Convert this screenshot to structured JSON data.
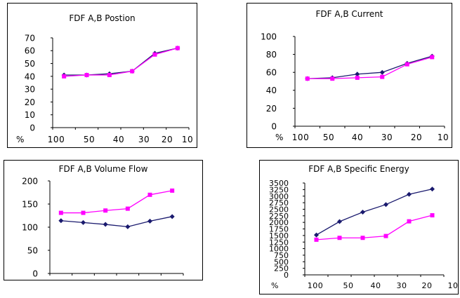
{
  "chart_data": [
    {
      "type": "line",
      "title": "FDF A,B Postion",
      "x_prefix": "%",
      "categories": [
        "100",
        "50",
        "40",
        "30",
        "20",
        "10"
      ],
      "yticks": [
        0,
        10,
        20,
        30,
        40,
        50,
        60,
        70
      ],
      "ylim": [
        0,
        70
      ],
      "grid": false,
      "series": [
        {
          "color": "#1a1a6e",
          "marker": "diamond",
          "values": [
            41,
            41,
            42,
            44,
            58,
            62
          ]
        },
        {
          "color": "#ff00ff",
          "marker": "square",
          "values": [
            40,
            41,
            41,
            44,
            57,
            62
          ]
        }
      ]
    },
    {
      "type": "line",
      "title": "FDF A,B Current",
      "x_prefix": "%",
      "categories": [
        "100",
        "50",
        "40",
        "30",
        "20",
        "10"
      ],
      "yticks": [
        0,
        20,
        40,
        60,
        80,
        100
      ],
      "ylim": [
        0,
        100
      ],
      "grid": false,
      "series": [
        {
          "color": "#1a1a6e",
          "marker": "diamond",
          "values": [
            53,
            54,
            58,
            60,
            70,
            78
          ]
        },
        {
          "color": "#ff00ff",
          "marker": "square",
          "values": [
            53,
            53,
            54,
            55,
            69,
            77
          ]
        }
      ]
    },
    {
      "type": "line",
      "title": "FDF A,B Volume Flow",
      "x_prefix": "%",
      "categories": [
        "100",
        "50",
        "40",
        "30",
        "20",
        "10"
      ],
      "yticks": [
        0,
        50,
        100,
        150,
        200
      ],
      "ylim": [
        0,
        200
      ],
      "grid": false,
      "series": [
        {
          "color": "#1a1a6e",
          "marker": "diamond",
          "values": [
            114,
            110,
            106,
            101,
            113,
            123
          ]
        },
        {
          "color": "#ff00ff",
          "marker": "square",
          "values": [
            131,
            131,
            136,
            140,
            170,
            179
          ]
        }
      ]
    },
    {
      "type": "line",
      "title": "FDF A,B Specific Energy",
      "x_prefix": "%",
      "categories": [
        "100",
        "50",
        "40",
        "30",
        "20",
        "10"
      ],
      "yticks": [
        0,
        250,
        500,
        750,
        1000,
        1250,
        1500,
        1750,
        2000,
        2250,
        2500,
        2750,
        3000,
        3250,
        3500
      ],
      "ylim": [
        0,
        3500
      ],
      "grid": false,
      "series": [
        {
          "color": "#1a1a6e",
          "marker": "diamond",
          "values": [
            1520,
            2030,
            2390,
            2680,
            3070,
            3270
          ]
        },
        {
          "color": "#ff00ff",
          "marker": "square",
          "values": [
            1340,
            1410,
            1410,
            1480,
            2040,
            2270
          ]
        }
      ]
    }
  ]
}
